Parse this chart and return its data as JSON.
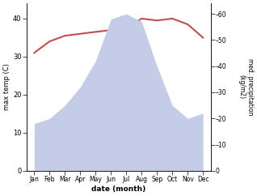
{
  "months": [
    "Jan",
    "Feb",
    "Mar",
    "Apr",
    "May",
    "Jun",
    "Jul",
    "Aug",
    "Sep",
    "Oct",
    "Nov",
    "Dec"
  ],
  "x": [
    0,
    1,
    2,
    3,
    4,
    5,
    6,
    7,
    8,
    9,
    10,
    11
  ],
  "temperature": [
    31,
    34,
    35.5,
    36,
    36.5,
    37,
    37.5,
    40,
    39.5,
    40,
    38.5,
    35
  ],
  "precipitation": [
    18,
    20,
    25,
    32,
    42,
    58,
    60,
    57,
    40,
    25,
    20,
    22
  ],
  "temp_color": "#c0504d",
  "precip_fill_color": "#c5cce8",
  "xlabel": "date (month)",
  "ylabel_left": "max temp (C)",
  "ylabel_right": "med. precipitation\n(kg/m2)",
  "ylim_left": [
    0,
    44
  ],
  "ylim_right": [
    0,
    64
  ],
  "yticks_left": [
    0,
    10,
    20,
    30,
    40
  ],
  "yticks_right": [
    0,
    10,
    20,
    30,
    40,
    50,
    60
  ],
  "background_color": "#ffffff",
  "figsize": [
    3.18,
    2.42
  ],
  "dpi": 100
}
